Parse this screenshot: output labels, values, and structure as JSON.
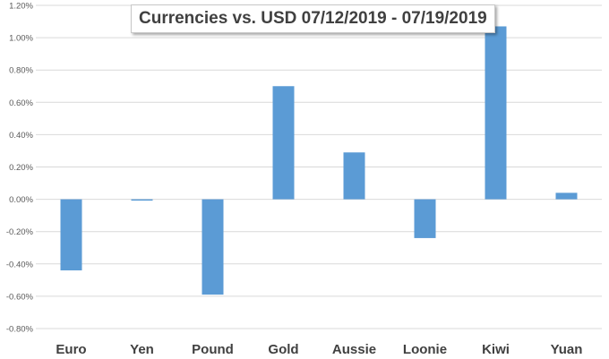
{
  "chart_data": {
    "type": "bar",
    "title": "Currencies vs. USD 07/12/2019 - 07/19/2019",
    "xlabel": "",
    "ylabel": "",
    "categories": [
      "Euro",
      "Yen",
      "Pound",
      "Gold",
      "Aussie",
      "Loonie",
      "Kiwi",
      "Yuan"
    ],
    "values": [
      -0.44,
      -0.005,
      -0.59,
      0.7,
      0.29,
      -0.24,
      1.07,
      0.04
    ],
    "ylim": [
      -0.8,
      1.2
    ],
    "yticks": [
      1.2,
      1.0,
      0.8,
      0.6,
      0.4,
      0.2,
      0.0,
      -0.2,
      -0.4,
      -0.6,
      -0.8
    ],
    "ytick_labels": [
      "1.20%",
      "1.00%",
      "0.80%",
      "0.60%",
      "0.40%",
      "0.20%",
      "0.00%",
      "-0.20%",
      "-0.40%",
      "-0.60%",
      "-0.80%"
    ],
    "grid": true,
    "legend": "none",
    "bar_color": "#5b9bd5",
    "grid_color": "#d9d9d9",
    "axis_label_color": "#595959"
  }
}
